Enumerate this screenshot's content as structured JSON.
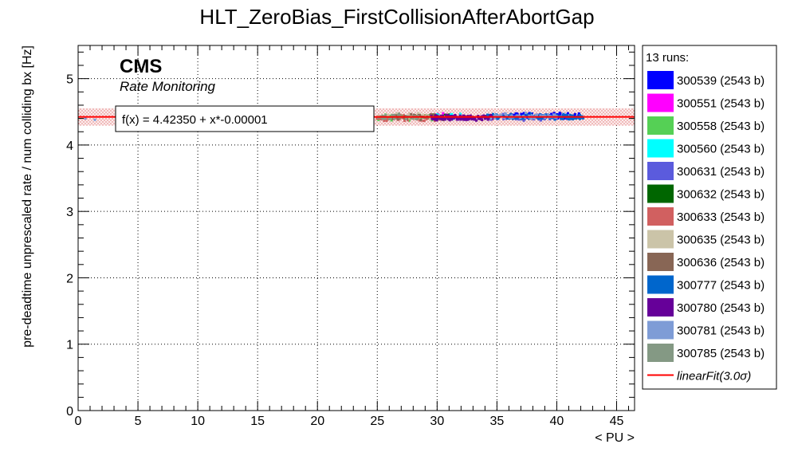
{
  "chart_data": {
    "type": "scatter",
    "title": "HLT_ZeroBias_FirstCollisionAfterAbortGap",
    "xlabel": "< PU >",
    "ylabel": "pre-deadtime unprescaled rate / num colliding bx [Hz]",
    "xlim": [
      0,
      46.5
    ],
    "ylim": [
      0,
      5.5
    ],
    "xticks": [
      0,
      5,
      10,
      15,
      20,
      25,
      30,
      35,
      40,
      45
    ],
    "yticks": [
      0,
      1,
      2,
      3,
      4,
      5
    ],
    "grid": true,
    "legend_position": "right",
    "cms_label": "CMS",
    "cms_sublabel": "Rate Monitoring",
    "fit_label": "f(x) = 4.42350 + x*-0.00001",
    "fit": {
      "name": "linearFit(3.0σ)",
      "intercept": 4.4235,
      "slope": -1e-05,
      "band_halfwidth": 0.13,
      "color": "#ff0000"
    },
    "legend_header": "13 runs:",
    "series": [
      {
        "name": "300539 (2543 b)",
        "color": "#0000ff",
        "x_range": [
          36,
          42
        ],
        "y_center": 4.44,
        "n": 110
      },
      {
        "name": "300551 (2543 b)",
        "color": "#ff00ff",
        "x_range": [
          29.5,
          31.5
        ],
        "y_center": 4.43,
        "n": 40
      },
      {
        "name": "300558 (2543 b)",
        "color": "#55d055",
        "x_range": [
          25,
          30
        ],
        "y_center": 4.42,
        "n": 70
      },
      {
        "name": "300560 (2543 b)",
        "color": "#00ffff",
        "x_range": [
          30,
          32
        ],
        "y_center": 4.43,
        "n": 25
      },
      {
        "name": "300631 (2543 b)",
        "color": "#5b5bdd",
        "x_range": [
          34,
          40
        ],
        "y_center": 4.42,
        "n": 80
      },
      {
        "name": "300632 (2543 b)",
        "color": "#006600",
        "x_range": [
          29,
          31
        ],
        "y_center": 4.42,
        "n": 30
      },
      {
        "name": "300633 (2543 b)",
        "color": "#d16060",
        "x_range": [
          24.8,
          30.5
        ],
        "y_center": 4.41,
        "n": 70
      },
      {
        "name": "300635 (2543 b)",
        "color": "#cbc4a8",
        "x_range": [
          25,
          31
        ],
        "y_center": 4.43,
        "n": 60
      },
      {
        "name": "300636 (2543 b)",
        "color": "#886655",
        "x_range": [
          26,
          31
        ],
        "y_center": 4.42,
        "n": 50
      },
      {
        "name": "300777 (2543 b)",
        "color": "#0066cc",
        "x_range": [
          34,
          42.3
        ],
        "y_center": 4.42,
        "n": 150
      },
      {
        "name": "300780 (2543 b)",
        "color": "#660099",
        "x_range": [
          29.5,
          34.8
        ],
        "y_center": 4.41,
        "n": 160
      },
      {
        "name": "300781 (2543 b)",
        "color": "#7e9cd6",
        "x_range": [
          34.5,
          40
        ],
        "y_center": 4.43,
        "n": 60
      },
      {
        "name": "300785 (2543 b)",
        "color": "#849984",
        "x_range": [
          25,
          28.5
        ],
        "y_center": 4.42,
        "n": 40
      }
    ]
  }
}
